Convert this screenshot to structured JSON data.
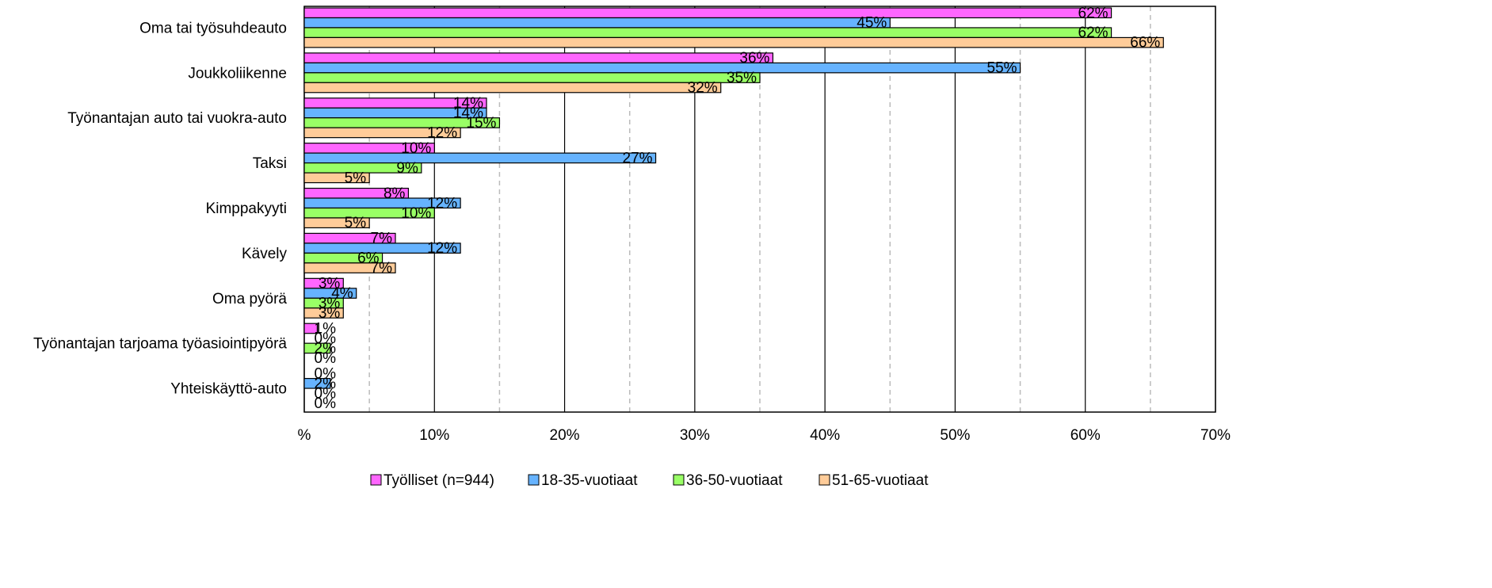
{
  "chart_data": {
    "type": "hbar",
    "categories": [
      "Oma tai työsuhdeauto",
      "Joukkoliikenne",
      "Työnantajan auto tai vuokra-auto",
      "Taksi",
      "Kimppakyyti",
      "Kävely",
      "Oma pyörä",
      "Työnantajan tarjoama työasiointipyörä",
      "Yhteiskäyttö-auto"
    ],
    "series": [
      {
        "name": "Työlliset (n=944)",
        "color": "#ff66ff",
        "values": [
          62,
          36,
          14,
          10,
          8,
          7,
          3,
          1,
          0
        ],
        "value_labels": [
          "62%",
          "36%",
          "14%",
          "10%",
          "8%",
          "7%",
          "3%",
          "1%",
          "0%"
        ]
      },
      {
        "name": "18-35-vuotiaat",
        "color": "#66b3ff",
        "values": [
          45,
          55,
          14,
          27,
          12,
          12,
          4,
          0,
          2
        ],
        "value_labels": [
          "45%",
          "55%",
          "14%",
          "27%",
          "12%",
          "12%",
          "4%",
          "0%",
          "2%"
        ]
      },
      {
        "name": "36-50-vuotiaat",
        "color": "#99ff66",
        "values": [
          62,
          35,
          15,
          9,
          10,
          6,
          3,
          2,
          0
        ],
        "value_labels": [
          "62%",
          "35%",
          "15%",
          "9%",
          "10%",
          "6%",
          "3%",
          "2%",
          "0%"
        ]
      },
      {
        "name": "51-65-vuotiaat",
        "color": "#ffcc99",
        "values": [
          66,
          32,
          12,
          5,
          5,
          7,
          3,
          0,
          0
        ],
        "value_labels": [
          "66%",
          "32%",
          "12%",
          "5%",
          "5%",
          "7%",
          "3%",
          "0%",
          "0%"
        ]
      }
    ],
    "xlim": [
      0,
      70
    ],
    "xticks": [
      {
        "value": 0,
        "label": "%"
      },
      {
        "value": 10,
        "label": "10%"
      },
      {
        "value": 20,
        "label": "20%"
      },
      {
        "value": 30,
        "label": "30%"
      },
      {
        "value": 40,
        "label": "40%"
      },
      {
        "value": 50,
        "label": "50%"
      },
      {
        "value": 60,
        "label": "60%"
      },
      {
        "value": 70,
        "label": "70%"
      }
    ],
    "xminorticks": [
      5,
      15,
      25,
      35,
      45,
      55,
      65
    ],
    "grid": true,
    "legend": "bottom"
  }
}
